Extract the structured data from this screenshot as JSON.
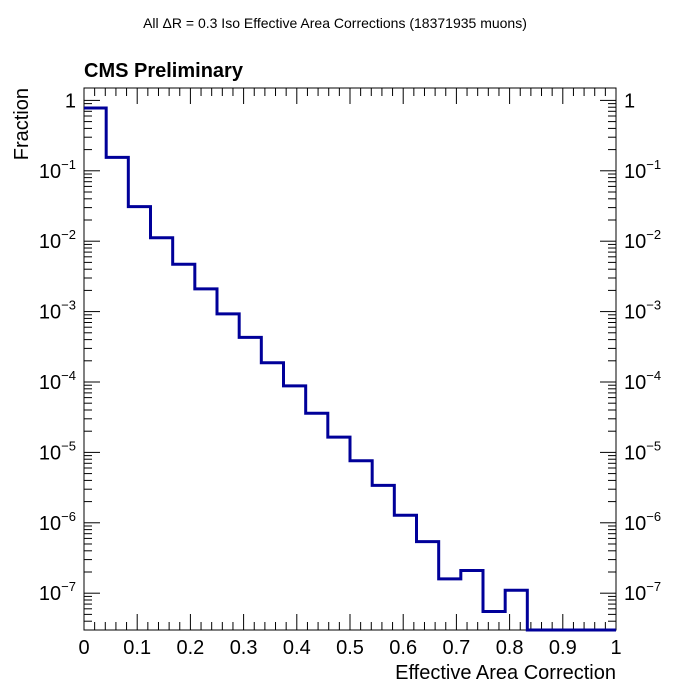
{
  "chart_data": {
    "type": "histogram",
    "title": "All ΔR = 0.3 Iso Effective Area Corrections (18371935 muons)",
    "tag": "CMS Preliminary",
    "xlabel": "Effective Area Correction",
    "ylabel": "Fraction",
    "xlim": [
      0,
      1
    ],
    "ylim": [
      3e-08,
      1.5
    ],
    "yscale": "log",
    "grid": false,
    "line_color": "#000099",
    "bin_edges": [
      0.0,
      0.0417,
      0.0833,
      0.125,
      0.1667,
      0.2083,
      0.25,
      0.2917,
      0.3333,
      0.375,
      0.4167,
      0.4583,
      0.5,
      0.5417,
      0.5833,
      0.625,
      0.6667,
      0.7083,
      0.75,
      0.7917,
      0.8333
    ],
    "values": [
      0.78,
      0.155,
      0.031,
      0.0112,
      0.0047,
      0.0021,
      0.00093,
      0.00043,
      0.000188,
      8.8e-05,
      3.6e-05,
      1.65e-05,
      7.6e-06,
      3.4e-06,
      1.28e-06,
      5.4e-07,
      1.6e-07,
      2.1e-07,
      5.5e-08,
      1.1e-07
    ],
    "x_ticks": [
      "0",
      "0.1",
      "0.2",
      "0.3",
      "0.4",
      "0.5",
      "0.6",
      "0.7",
      "0.8",
      "0.9",
      "1"
    ],
    "y_ticks": [
      {
        "base": "1",
        "exp": ""
      },
      {
        "base": "10",
        "exp": "−1"
      },
      {
        "base": "10",
        "exp": "−2"
      },
      {
        "base": "10",
        "exp": "−3"
      },
      {
        "base": "10",
        "exp": "−4"
      },
      {
        "base": "10",
        "exp": "−5"
      },
      {
        "base": "10",
        "exp": "−6"
      },
      {
        "base": "10",
        "exp": "−7"
      }
    ]
  }
}
